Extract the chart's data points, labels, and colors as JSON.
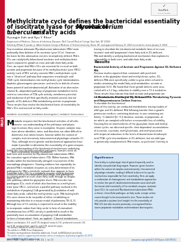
{
  "title_line1": "Methylcitrate cycle defines the bactericidal essentiality",
  "title_line2a": "of isocitrate lyase for survival of ",
  "title_line2b": "Mycobacterium",
  "title_line3a": "tuberculosis",
  "title_line3b": " on fatty acids",
  "authors": "Hyungjin Eoh and Kyu Y. Rhee¹",
  "affiliation": "Department of Medicine, Division of Infectious Diseases, Weill Cornell Medical College, New York, NY 10065",
  "edited_by": "Edited by William R. Jacobs, Jr., Albert Einstein College of Medicine of Yeshiva University, Bronx, NY, and approved February 25, 2014 (received for review January 8, 2014)",
  "abstract_text": "Few mutations attenuate Mycobacterium tuberculosis (Mtb) more\nprofoundly than deletion of its isocitrate lyase (ICLs). However,\nthe basis for this attenuation remains incompletely defined. Mtb’s\nICLs are catalytically bifunctional isocitrate and methylisocitrate\nlyases required for growth on even and odd chain fatty acids.\nHere, we report that Mtb’s ICLs are essential for survival on both\nacetate and propionate because of its methylisocitrate lyase (MCL)\nactivity. Lack of MCL activity converts Mtb’s methylcitrate cycle\ninto a “dead end” pathway that sequesters tricarboxylic acid\n(TCA) cycle intermediaries into methylcitrate cycle intermediaries,\ndepletes gluconeogenic precursors, and results in deficits of mem-\nbrane potential and intrabacterial pH. Activation of an alternative\nvitamin B₁₂-dependent pathway of propionate metabolism led to\nselective corrections of TCA cycle activity, membrane potential,\nand intrabacterial pH that specifically restored survival, but not\ngrowth, of ICL-deficient Mtb metabolizing acetate or propionate.\nThese results thus resolve the biochemical basis of essentiality for\nMtb’s ICLs and survival on fatty acids.",
  "keywords": "metabolic essentiality | membrane bioenergetics | metabolic homeostasis",
  "body_col1_para1": "Metabolic enzymes fuel the biochemical activities of all cells.\nMoreover, our understanding of the pathways and physio-\nlogic functions they serve is incomplete. Enzyme catalytic reac-\ntions whose identities, rates, and directions are often difficult to\ndetermine and, where known, function within the context of\ncomplex and extensively interconnected physiologic networks (1).\nThus, although recent genetic and biochemical approaches have\nmade it possible to determine the essentiality of a given enzyme,\nour understanding of the biochemical mechanisms underlying\ntheir essentiality remains incomplete.",
  "body_col1_para2": "Unlike the case for most microbial pathogens, humans serve as\nboth host and reservoir for Mycobacterium tuberculosis (Mtb),\nthe causative agent of tuberculosis (TB). Within humans, Mtb\nresides within the biochemically stringent environment of the\nmacrophage phagosome. Growing evidence has repeatedly im-\nplicated Mtb’s metabolic enzymes as a key determinant of its\npathogenicity. Mtb’s metabolic network thus appears to have\nevolved to serve interdependent physiologic and pathogenic\nroles (2, 3).",
  "body_col1_para3": "Isocitrate lyase (ICL) is a metabolic enzyme used by bacteria\nto sustain growth on even-chain fatty acids through an anaple-\nrotic pathway called the glyoxylate shunt. Mtb encodes two\nparalogous ICLs, each of which also functions as a methylisoci-\ntrate lyase (MCL), and serves a parallel pathway involved in the\nmetabolism of propionyl-CoA generated by β-oxidation of odd-\nchain fatty acids, called the methylcitrate cycle. Mtb lacking both\nICLs were shown to be incapable of either establishing or\nmaintaining infection in a mouse model of pulmonary TB (4, 5).\nAlthough loss of ICL activity is expected to result in the inability\nto incorporate carbon from fatty acids (a form of starvation),\nsimultaneous loss of MCL activity is predicted to result in the\npotentially toxic accumulation of propionyl-CoA metabolites\n(a form of intoxication). Here, we applied ¹³C-based metabolomic",
  "body_col2_para1": "tracing to elucidate the intrabacterial metabolic fates of an even\n(acetate) and odd (propionate) chain fatty acid in ICL-deficient\nMtb and identify a unifying biochemical mechanism that explains its\nvulnerability to both even- and odd-chain fatty acids.",
  "results_header": "Results",
  "results_sub1": "Bactericidal Activity of Acetate and Propionate Against ICL-Deficient\nMtb.",
  "results_text1": "Previous studies reported that, consistent with predicted\ndefects in the glyoxylate shunt and methylcitrate cycles, ICL-\ndeficient Mtb were specifically unable to grow when cultured in\nmedia containing the model fatty acid metabolites, acetate or\npropionate (4-6). We found that these growth defects were asso-\nciated with a 1-2 log₁₀ reduction in viability over a 72-h incubation.\nThese results thus indicate that both acetate and propionate are\nbactericidal to ICL-deficient Mtb (Fig. S1 A and B).",
  "results_sub2": "¹³C Metabolomic Profiling of ICL-Deficient Mtb Metabolizing Pyruvate\nand Nonpromiscuous Carbon Sources.",
  "results_text2": "To elucidate the biochemical\nbasis of this toxicity, we conducted metabolomic tracing studies of\nwild-type and ICL-deficient Mtb following transfer from a growth-\npermissive medium, containing dextrose, to one containing uni-\nformly ¹³C-labeled ([U-¹³C]) dextrose, acetate, or propionate; af-\nter which, we sampled cells before a measurable loss of viability.\nFocusing first on intermediaries of the glyoxylate shunt and methyl-\ncitrate cycles, we observed specific, time-dependent accumulations\nof isocitrate, succinate, methylisocitrate, and methylsuccinate\nwith reciprocal reductions in the levels of downstream tricarboxylic\nacid (TCA) cycle intermediaries in ICL-deficient, but not wild-type\nor genetically complemented, Mtb strains, as predicted. Contrary to",
  "significance_header": "Significance",
  "significance_text": "Essentiality is a phenotypic trait of genes frequently used to\nidentify new potential drug targets. However, genes function\nwithin the context of complex and extensively interconnected\nphysiologic networks, making it difficult to discern the specific\nmechanisms responsible for their essentiality. Here, we apply\na combination of chemogenomic and metabolomics approaches\nto resolve the specific biochemical mechanism associated with\nthe bactericidal essentiality of the metabolic enzyme, isocitrate\nlyase (ICL), for survival of Mycobacterium tuberculosis (Mtb),\na chronic intracellular pathogen, on fatty acids, a major carbon\nsource thought to be encountered in vivo. These studies not\nonly provide a systems level insight into the essentiality of\nMtb’s ICL but also reveal a previously unrecognized link be-\ntween propionate metabolism and membrane bioenergetics.",
  "footer_authors": "Author contributions: H.E. and K.Y.R. designed research; H.E. performed research; H.E.\nand K.Y.R. analyzed data; and H.E. and K.Y.R. wrote the paper.",
  "footer_conflict": "The authors declare no conflict of interest.",
  "footer_article": "This article is a PNAS Direct Submission.",
  "footer_note": "¹To whom correspondence should be addressed. E-mail: kyr9001@med.cornell.edu.",
  "footer_url": "This article contains supporting information online at www.pnas.org/lookup/suppl/doi:10.1073/\npnas.1400390111/-/DCSupplemental.",
  "journal_info": "www.pnas.org/cgi/doi/10.1073/pnas.1400390111",
  "issue_info": "6878 | PNAS  |  April 1, 2014  |  vol. 111  |  no. 13",
  "pnas_label": "PNAS",
  "background_color": "#ffffff",
  "text_color": "#1a1a1a",
  "title_color": "#000000",
  "sidebar_color": "#c8102e",
  "significance_bg": "#d6e8f7",
  "crossmark_red": "#cc2200"
}
